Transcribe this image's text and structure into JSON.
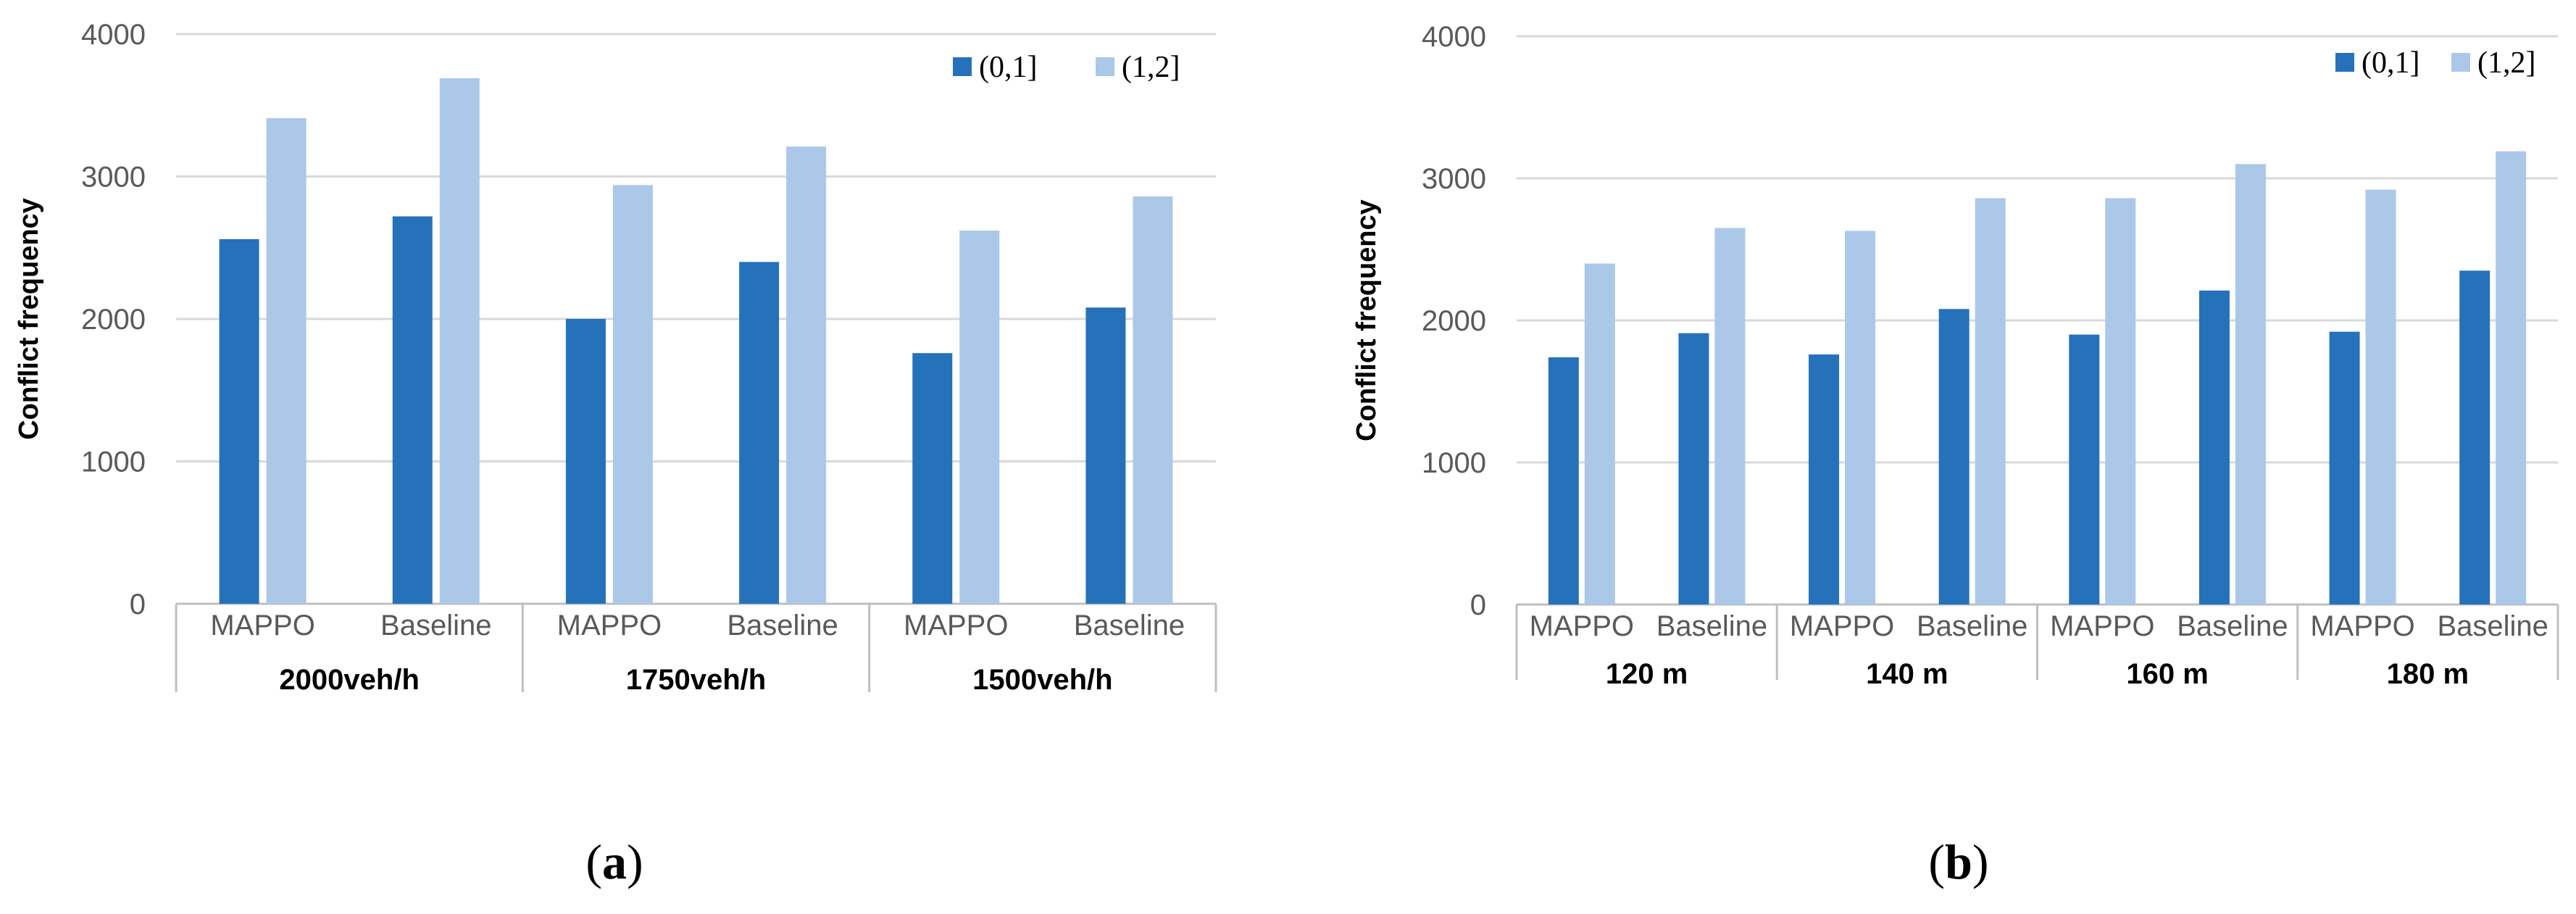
{
  "colors": {
    "series_0": "#2572BA",
    "series_1": "#ABC8E8",
    "grid": "#D9D9D9",
    "axis": "#BFBFBF"
  },
  "panels": [
    {
      "label_open": "(",
      "label_letter": "a",
      "label_close": ")"
    },
    {
      "label_open": "(",
      "label_letter": "b",
      "label_close": ")"
    }
  ],
  "chart_data": [
    {
      "type": "bar",
      "title": "",
      "ylabel": "Conflict frequency",
      "xlabel": "",
      "ylim": [
        0,
        4000
      ],
      "yticks": [
        0,
        1000,
        2000,
        3000,
        4000
      ],
      "grid": true,
      "legend_position": "top-right",
      "categories": [
        "MAPPO",
        "Baseline",
        "MAPPO",
        "Baseline",
        "MAPPO",
        "Baseline"
      ],
      "groups": [
        {
          "label": "2000veh/h",
          "span": 2
        },
        {
          "label": "1750veh/h",
          "span": 2
        },
        {
          "label": "1500veh/h",
          "span": 2
        }
      ],
      "series": [
        {
          "name": "(0,1]",
          "values": [
            2560,
            2720,
            2000,
            2400,
            1760,
            2080
          ]
        },
        {
          "name": "(1,2]",
          "values": [
            3410,
            3690,
            2940,
            3210,
            2620,
            2860
          ]
        }
      ]
    },
    {
      "type": "bar",
      "title": "",
      "ylabel": "Conflict frequency",
      "xlabel": "",
      "ylim": [
        0,
        4000
      ],
      "yticks": [
        0,
        1000,
        2000,
        3000,
        4000
      ],
      "grid": true,
      "legend_position": "top-right",
      "categories": [
        "MAPPO",
        "Baseline",
        "MAPPO",
        "Baseline",
        "MAPPO",
        "Baseline",
        "MAPPO",
        "Baseline"
      ],
      "groups": [
        {
          "label": "120 m",
          "span": 2
        },
        {
          "label": "140 m",
          "span": 2
        },
        {
          "label": "160 m",
          "span": 2
        },
        {
          "label": "180 m",
          "span": 2
        }
      ],
      "series": [
        {
          "name": "(0,1]",
          "values": [
            1740,
            1910,
            1760,
            2080,
            1900,
            2210,
            1920,
            2350
          ]
        },
        {
          "name": "(1,2]",
          "values": [
            2400,
            2650,
            2630,
            2860,
            2860,
            3100,
            2920,
            3190
          ]
        }
      ]
    }
  ]
}
